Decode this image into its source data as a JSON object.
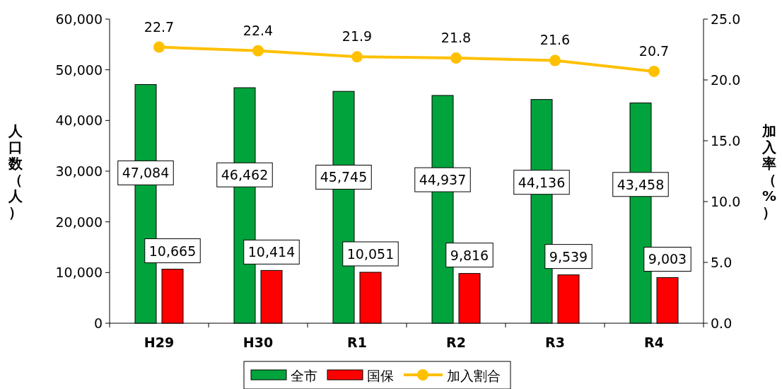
{
  "chart_data": {
    "type": "bar",
    "categories": [
      "H29",
      "H30",
      "R1",
      "R2",
      "R3",
      "R4"
    ],
    "series": [
      {
        "name": "全市",
        "color": "#00a33c",
        "values": [
          47084,
          46462,
          45745,
          44937,
          44136,
          43458
        ],
        "value_labels": [
          "47,084",
          "46,462",
          "45,745",
          "44,937",
          "44,136",
          "43,458"
        ]
      },
      {
        "name": "国保",
        "color": "#ff0000",
        "values": [
          10665,
          10414,
          10051,
          9816,
          9539,
          9003
        ],
        "value_labels": [
          "10,665",
          "10,414",
          "10,051",
          "9,816",
          "9,539",
          "9,003"
        ]
      },
      {
        "name": "加入割合",
        "type": "line",
        "axis": "y2",
        "color": "#ffc000",
        "values": [
          22.7,
          22.4,
          21.9,
          21.8,
          21.6,
          20.7
        ],
        "value_labels": [
          "22.7",
          "22.4",
          "21.9",
          "21.8",
          "21.6",
          "20.7"
        ]
      }
    ],
    "ylabel": "人口数（人）",
    "y2label": "加入率（%）",
    "ylim": [
      0,
      60000
    ],
    "yticks": [
      {
        "value": 0,
        "label": "0"
      },
      {
        "value": 10000,
        "label": "10,000"
      },
      {
        "value": 20000,
        "label": "20,000"
      },
      {
        "value": 30000,
        "label": "30,000"
      },
      {
        "value": 40000,
        "label": "40,000"
      },
      {
        "value": 50000,
        "label": "50,000"
      },
      {
        "value": 60000,
        "label": "60,000"
      }
    ],
    "y2lim": [
      0,
      25
    ],
    "y2ticks": [
      {
        "value": 0,
        "label": "0.0"
      },
      {
        "value": 5,
        "label": "5.0"
      },
      {
        "value": 10,
        "label": "10.0"
      },
      {
        "value": 15,
        "label": "15.0"
      },
      {
        "value": 20,
        "label": "20.0"
      },
      {
        "value": 25,
        "label": "25.0"
      }
    ],
    "legend": "bottom",
    "marker": "circle",
    "grid": false
  }
}
